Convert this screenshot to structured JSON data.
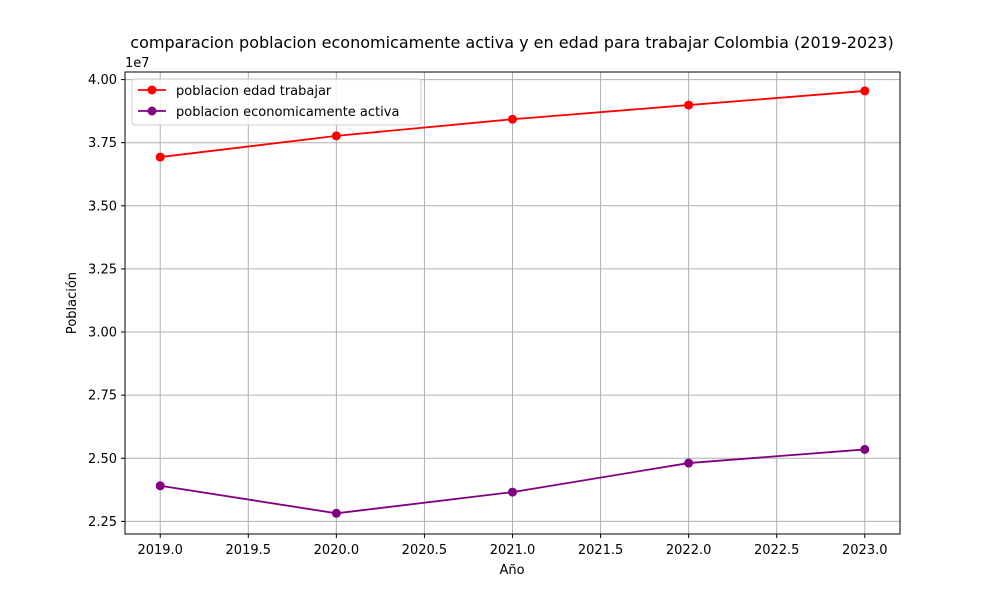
{
  "chart_data": {
    "type": "line",
    "title": "comparacion poblacion economicamente activa y en edad para trabajar Colombia (2019-2023)",
    "xlabel": "Año",
    "ylabel": "Población",
    "y_offset_label": "1e7",
    "xlim": [
      2018.8,
      2023.2
    ],
    "ylim": [
      2.2,
      4.03
    ],
    "y_scale_factor": 10000000,
    "x_ticks": [
      2019.0,
      2019.5,
      2020.0,
      2020.5,
      2021.0,
      2021.5,
      2022.0,
      2022.5,
      2023.0
    ],
    "x_tick_labels": [
      "2019.0",
      "2019.5",
      "2020.0",
      "2020.5",
      "2021.0",
      "2021.5",
      "2022.0",
      "2022.5",
      "2023.0"
    ],
    "y_ticks": [
      2.25,
      2.5,
      2.75,
      3.0,
      3.25,
      3.5,
      3.75,
      4.0
    ],
    "y_tick_labels": [
      "2.25",
      "2.50",
      "2.75",
      "3.00",
      "3.25",
      "3.50",
      "3.75",
      "4.00"
    ],
    "grid": true,
    "legend_position": "upper-left",
    "x": [
      2019,
      2020,
      2021,
      2022,
      2023
    ],
    "series": [
      {
        "name": "poblacion edad trabajar",
        "color": "#ff0000",
        "values": [
          3.693,
          3.777,
          3.843,
          3.899,
          3.955
        ]
      },
      {
        "name": "poblacion economicamente activa",
        "color": "#800080",
        "values": [
          2.391,
          2.282,
          2.366,
          2.481,
          2.535
        ]
      }
    ]
  }
}
